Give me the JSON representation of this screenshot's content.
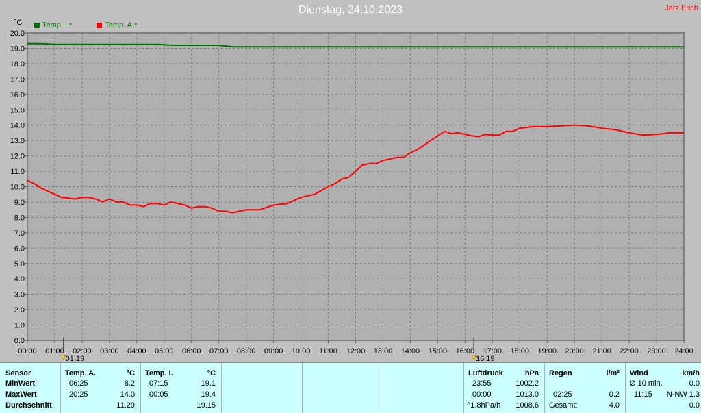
{
  "title": "Dienstag, 24.10.2023",
  "author": "Jarz Erich",
  "unit": "°C",
  "legend": [
    {
      "label": "Temp. I.*",
      "color": "#007000"
    },
    {
      "label": "Temp. A.*",
      "color": "#ff0000"
    }
  ],
  "markers": [
    {
      "time": 1.317,
      "label": "01:19"
    },
    {
      "time": 16.317,
      "label": "16:19"
    }
  ],
  "chart_data": {
    "type": "line",
    "x_ticks": [
      "00:00",
      "01:00",
      "02:00",
      "03:00",
      "04:00",
      "05:00",
      "06:00",
      "07:00",
      "08:00",
      "09:00",
      "10:00",
      "11:00",
      "12:00",
      "13:00",
      "14:00",
      "15:00",
      "16:00",
      "17:00",
      "18:00",
      "19:00",
      "20:00",
      "21:00",
      "22:00",
      "23:00",
      "24:00"
    ],
    "y_ticks": [
      "0.0",
      "1.0",
      "2.0",
      "3.0",
      "4.0",
      "5.0",
      "6.0",
      "7.0",
      "8.0",
      "9.0",
      "10.0",
      "11.0",
      "12.0",
      "13.0",
      "14.0",
      "15.0",
      "16.0",
      "17.0",
      "18.0",
      "19.0",
      "20.0"
    ],
    "xlim": [
      0,
      24
    ],
    "ylim": [
      0,
      20
    ],
    "grid": true,
    "series": [
      {
        "name": "Temp. I.*",
        "color": "#007000",
        "x": [
          0,
          0.5,
          1,
          2,
          3,
          4,
          4.8,
          5.3,
          6,
          7,
          7.5,
          8,
          10,
          12,
          14,
          16,
          18,
          20,
          22,
          24
        ],
        "y": [
          19.3,
          19.3,
          19.25,
          19.25,
          19.25,
          19.25,
          19.25,
          19.2,
          19.2,
          19.2,
          19.1,
          19.1,
          19.1,
          19.1,
          19.1,
          19.1,
          19.1,
          19.1,
          19.1,
          19.1
        ]
      },
      {
        "name": "Temp. A.*",
        "color": "#ff0000",
        "x": [
          0,
          0.25,
          0.5,
          0.75,
          1,
          1.25,
          1.5,
          1.75,
          2,
          2.25,
          2.5,
          2.75,
          3,
          3.25,
          3.5,
          3.75,
          4,
          4.25,
          4.5,
          4.75,
          5,
          5.25,
          5.5,
          5.75,
          6,
          6.25,
          6.5,
          6.75,
          7,
          7.25,
          7.5,
          7.75,
          8,
          8.5,
          9,
          9.5,
          10,
          10.5,
          11,
          11.25,
          11.5,
          11.75,
          12,
          12.25,
          12.5,
          12.75,
          13,
          13.25,
          13.5,
          13.75,
          14,
          14.25,
          14.5,
          14.75,
          15,
          15.25,
          15.5,
          15.75,
          16,
          16.25,
          16.5,
          16.75,
          17,
          17.25,
          17.5,
          17.75,
          18,
          18.25,
          18.5,
          19,
          19.5,
          20,
          20.5,
          21,
          21.5,
          22,
          22.5,
          23,
          23.5,
          24
        ],
        "y": [
          10.4,
          10.2,
          9.9,
          9.7,
          9.5,
          9.3,
          9.25,
          9.2,
          9.3,
          9.3,
          9.2,
          9.0,
          9.2,
          9.0,
          9.0,
          8.8,
          8.8,
          8.7,
          8.9,
          8.9,
          8.8,
          9.0,
          8.9,
          8.8,
          8.6,
          8.7,
          8.7,
          8.6,
          8.4,
          8.4,
          8.3,
          8.4,
          8.5,
          8.5,
          8.8,
          8.9,
          9.3,
          9.5,
          10.0,
          10.2,
          10.5,
          10.6,
          11.0,
          11.4,
          11.5,
          11.5,
          11.7,
          11.8,
          11.9,
          11.9,
          12.2,
          12.4,
          12.7,
          13.0,
          13.3,
          13.6,
          13.45,
          13.5,
          13.4,
          13.3,
          13.25,
          13.4,
          13.35,
          13.35,
          13.6,
          13.6,
          13.8,
          13.85,
          13.9,
          13.9,
          13.95,
          14.0,
          13.95,
          13.8,
          13.7,
          13.5,
          13.35,
          13.4,
          13.5,
          13.5
        ]
      }
    ]
  },
  "stats": {
    "sensor": {
      "header": "Sensor",
      "rows": [
        "MinWert",
        "MaxWert",
        "Durchschnitt"
      ]
    },
    "temp_a": {
      "header": "Temp. A.",
      "unit": "°C",
      "min_time": "06:25",
      "min_val": "8.2",
      "max_time": "20:25",
      "max_val": "14.0",
      "avg": "11.29"
    },
    "temp_i": {
      "header": "Temp. I.",
      "unit": "°C",
      "min_time": "07:15",
      "min_val": "19.1",
      "max_time": "00:05",
      "max_val": "19.4",
      "avg": "19.15"
    },
    "pressure": {
      "header": "Luftdruck",
      "unit": "hPa",
      "min_time": "23:55",
      "min_val": "1002.2",
      "max_time": "00:00",
      "max_val": "1013.0",
      "trend": "^1.8hPa/h",
      "avg": "1008.6"
    },
    "rain": {
      "header": "Regen",
      "unit": "l/m²",
      "max_time": "02:25",
      "max_val": "0.2",
      "total_label": "Gesamt:",
      "total": "4.0"
    },
    "wind": {
      "header": "Wind",
      "unit": "km/h",
      "avg_label": "Ø 10 min.",
      "avg_val": "0.0",
      "max_time": "11:15",
      "max_val": "N-NW 1.3",
      "last_val": "0.0"
    }
  }
}
